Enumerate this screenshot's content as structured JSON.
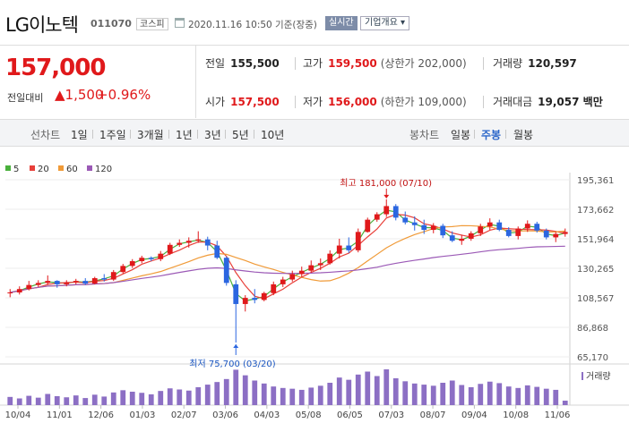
{
  "header": {
    "stock_name": "LG이노텍",
    "stock_code": "011070",
    "market": "코스피",
    "datetime": "2020.11.16 10:50 기준(장중)",
    "realtime": "실시간",
    "company_info": "기업개요 ▾"
  },
  "price": {
    "current": "157,000",
    "change_label": "전일대비",
    "change_amount": "▲1,500",
    "change_percent": "+0.96%"
  },
  "stats": {
    "prev_close_label": "전일",
    "prev_close": "155,500",
    "high_label": "고가",
    "high": "159,500",
    "upper_limit": "(상한가 202,000)",
    "volume_label": "거래량",
    "volume": "120,597",
    "open_label": "시가",
    "open": "157,500",
    "low_label": "저가",
    "low": "156,000",
    "lower_limit": "(하한가 109,000)",
    "value_label": "거래대금",
    "value": "19,057 백만"
  },
  "period_bar": {
    "line_label": "선차트",
    "line_periods": [
      "1일",
      "1주일",
      "3개월",
      "1년",
      "3년",
      "5년",
      "10년"
    ],
    "candle_label": "봉차트",
    "candle_periods": [
      "일봉",
      "주봉",
      "월봉"
    ],
    "active_candle": "주봉"
  },
  "colors": {
    "up": "#e0191b",
    "down": "#2b66e0",
    "ma5": "#49b03c",
    "ma20": "#e8403a",
    "ma60": "#f09a37",
    "ma120": "#9b59b6",
    "volume": "#8c6fc4"
  },
  "chart_data": {
    "type": "candlestick",
    "legend": [
      {
        "name": "5",
        "color": "#49b03c"
      },
      {
        "name": "20",
        "color": "#e8403a"
      },
      {
        "name": "60",
        "color": "#f09a37"
      },
      {
        "name": "120",
        "color": "#9b59b6"
      }
    ],
    "y_ticks": [
      "195,361",
      "173,662",
      "151,964",
      "130,265",
      "108,567",
      "86,868",
      "65,170"
    ],
    "ylim": [
      65170,
      195361
    ],
    "x_ticks": [
      "10/04",
      "11/01",
      "12/06",
      "01/03",
      "02/07",
      "03/06",
      "04/03",
      "05/08",
      "06/05",
      "07/03",
      "08/07",
      "09/04",
      "10/08",
      "11/06"
    ],
    "annotations": {
      "high": {
        "text": "최고 181,000 (07/10)",
        "value": 181000,
        "index": 40
      },
      "low": {
        "text": "최저 75,700 (03/20)",
        "value": 75700,
        "index": 24
      }
    },
    "volume_label": "거래량",
    "candles": [
      [
        112000,
        115000,
        109000,
        112500
      ],
      [
        112500,
        117000,
        111000,
        115000
      ],
      [
        115000,
        121000,
        114000,
        118000
      ],
      [
        118000,
        121500,
        116500,
        119500
      ],
      [
        119500,
        125000,
        118000,
        121000
      ],
      [
        121000,
        121500,
        116000,
        118500
      ],
      [
        118500,
        121500,
        117000,
        120000
      ],
      [
        120000,
        122500,
        118500,
        121000
      ],
      [
        121000,
        123000,
        118000,
        119000
      ],
      [
        119000,
        124000,
        118500,
        123000
      ],
      [
        123000,
        126000,
        120500,
        122000
      ],
      [
        122000,
        129000,
        121000,
        127500
      ],
      [
        127500,
        133500,
        126500,
        132000
      ],
      [
        132000,
        137000,
        130500,
        135500
      ],
      [
        135500,
        139500,
        134000,
        138000
      ],
      [
        138000,
        139000,
        135500,
        137000
      ],
      [
        137000,
        143000,
        135500,
        141000
      ],
      [
        141000,
        149000,
        140000,
        147500
      ],
      [
        147500,
        151500,
        146000,
        149000
      ],
      [
        149000,
        153000,
        145500,
        150500
      ],
      [
        150500,
        157500,
        149000,
        151500
      ],
      [
        151500,
        153500,
        143500,
        147000
      ],
      [
        147000,
        150500,
        137000,
        138000
      ],
      [
        138000,
        139000,
        117500,
        119500
      ],
      [
        118500,
        121500,
        75700,
        104000
      ],
      [
        104000,
        110500,
        98500,
        108500
      ],
      [
        108500,
        115000,
        104500,
        107000
      ],
      [
        107000,
        113000,
        106000,
        112000
      ],
      [
        112000,
        120500,
        110500,
        118500
      ],
      [
        118500,
        124000,
        116500,
        122000
      ],
      [
        122000,
        128500,
        120500,
        126000
      ],
      [
        126000,
        131500,
        123500,
        128500
      ],
      [
        128500,
        136000,
        127000,
        132500
      ],
      [
        132500,
        137500,
        129000,
        134000
      ],
      [
        134000,
        143500,
        133000,
        141000
      ],
      [
        141000,
        152000,
        137500,
        147000
      ],
      [
        147000,
        153000,
        141500,
        143500
      ],
      [
        143500,
        159500,
        142000,
        157000
      ],
      [
        157000,
        167500,
        156500,
        166000
      ],
      [
        166000,
        171500,
        164500,
        170000
      ],
      [
        170000,
        181000,
        168000,
        176000
      ],
      [
        176000,
        177500,
        165500,
        167500
      ],
      [
        167500,
        172000,
        162500,
        164000
      ],
      [
        164000,
        168500,
        158000,
        162000
      ],
      [
        162000,
        166000,
        155500,
        158500
      ],
      [
        158500,
        163500,
        156000,
        161500
      ],
      [
        161500,
        163000,
        152500,
        154500
      ],
      [
        154500,
        157500,
        149500,
        150500
      ],
      [
        150500,
        155000,
        147500,
        152000
      ],
      [
        152000,
        157500,
        150500,
        156000
      ],
      [
        156000,
        163000,
        154000,
        161000
      ],
      [
        161000,
        167000,
        158500,
        164000
      ],
      [
        164000,
        166000,
        157500,
        158500
      ],
      [
        158500,
        160500,
        153000,
        154000
      ],
      [
        154000,
        161000,
        151500,
        159500
      ],
      [
        159500,
        165500,
        157000,
        163000
      ],
      [
        163000,
        164500,
        156500,
        158000
      ],
      [
        158000,
        159500,
        151500,
        153000
      ],
      [
        153000,
        157000,
        149500,
        155500
      ],
      [
        155500,
        159500,
        153500,
        157000
      ]
    ],
    "volumes": [
      22,
      18,
      25,
      20,
      30,
      24,
      21,
      26,
      19,
      28,
      23,
      34,
      40,
      36,
      33,
      29,
      38,
      45,
      42,
      39,
      48,
      55,
      62,
      70,
      95,
      80,
      66,
      58,
      50,
      46,
      44,
      41,
      47,
      52,
      60,
      74,
      68,
      82,
      90,
      78,
      96,
      72,
      64,
      58,
      55,
      52,
      60,
      66,
      54,
      48,
      57,
      63,
      59,
      50,
      46,
      53,
      49,
      44,
      41,
      12
    ]
  }
}
